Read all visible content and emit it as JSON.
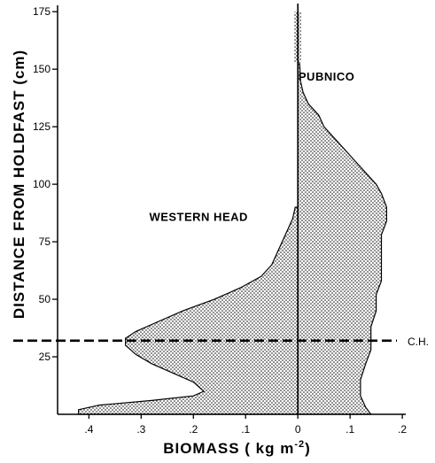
{
  "chart_data": {
    "type": "area",
    "xlabel": "BIOMASS ( kg m",
    "xlabel_sup": "-2",
    "xlabel_close": ")",
    "ylabel": "DISTANCE FROM HOLDFAST (cm)",
    "xlim": [
      -0.46,
      0.21
    ],
    "ylim": [
      0,
      177
    ],
    "x_ticks": [
      {
        "value": -0.4,
        "label": ".4"
      },
      {
        "value": -0.3,
        "label": ".3"
      },
      {
        "value": -0.2,
        "label": ".2"
      },
      {
        "value": -0.1,
        "label": ".1"
      },
      {
        "value": 0,
        "label": "0"
      },
      {
        "value": 0.1,
        "label": ".1"
      },
      {
        "value": 0.2,
        "label": ".2"
      }
    ],
    "y_ticks": [
      25,
      50,
      75,
      100,
      125,
      150,
      175
    ],
    "series": [
      {
        "name": "WESTERN HEAD",
        "side": "left",
        "profile": [
          [
            0,
            -0.42
          ],
          [
            2,
            -0.42
          ],
          [
            4,
            -0.38
          ],
          [
            6,
            -0.28
          ],
          [
            8,
            -0.2
          ],
          [
            10,
            -0.18
          ],
          [
            14,
            -0.2
          ],
          [
            18,
            -0.24
          ],
          [
            22,
            -0.28
          ],
          [
            26,
            -0.31
          ],
          [
            30,
            -0.33
          ],
          [
            33,
            -0.33
          ],
          [
            36,
            -0.31
          ],
          [
            40,
            -0.27
          ],
          [
            45,
            -0.22
          ],
          [
            50,
            -0.16
          ],
          [
            55,
            -0.11
          ],
          [
            60,
            -0.07
          ],
          [
            65,
            -0.05
          ],
          [
            70,
            -0.04
          ],
          [
            75,
            -0.03
          ],
          [
            80,
            -0.02
          ],
          [
            85,
            -0.01
          ],
          [
            90,
            -0.005
          ],
          [
            90,
            0
          ]
        ]
      },
      {
        "name": "PUBNICO",
        "side": "right",
        "profile": [
          [
            0,
            0.14
          ],
          [
            3,
            0.13
          ],
          [
            8,
            0.12
          ],
          [
            15,
            0.12
          ],
          [
            22,
            0.13
          ],
          [
            28,
            0.14
          ],
          [
            32,
            0.14
          ],
          [
            38,
            0.14
          ],
          [
            45,
            0.15
          ],
          [
            52,
            0.15
          ],
          [
            58,
            0.16
          ],
          [
            65,
            0.16
          ],
          [
            72,
            0.16
          ],
          [
            78,
            0.16
          ],
          [
            84,
            0.17
          ],
          [
            90,
            0.17
          ],
          [
            96,
            0.16
          ],
          [
            100,
            0.15
          ],
          [
            105,
            0.13
          ],
          [
            110,
            0.11
          ],
          [
            115,
            0.09
          ],
          [
            120,
            0.07
          ],
          [
            125,
            0.05
          ],
          [
            130,
            0.04
          ],
          [
            135,
            0.02
          ],
          [
            140,
            0.01
          ],
          [
            145,
            0.005
          ],
          [
            150,
            0.004
          ],
          [
            153,
            0.003
          ]
        ]
      }
    ],
    "annotations": [
      {
        "text": "C.H.",
        "y": 32
      }
    ],
    "grid": false
  }
}
